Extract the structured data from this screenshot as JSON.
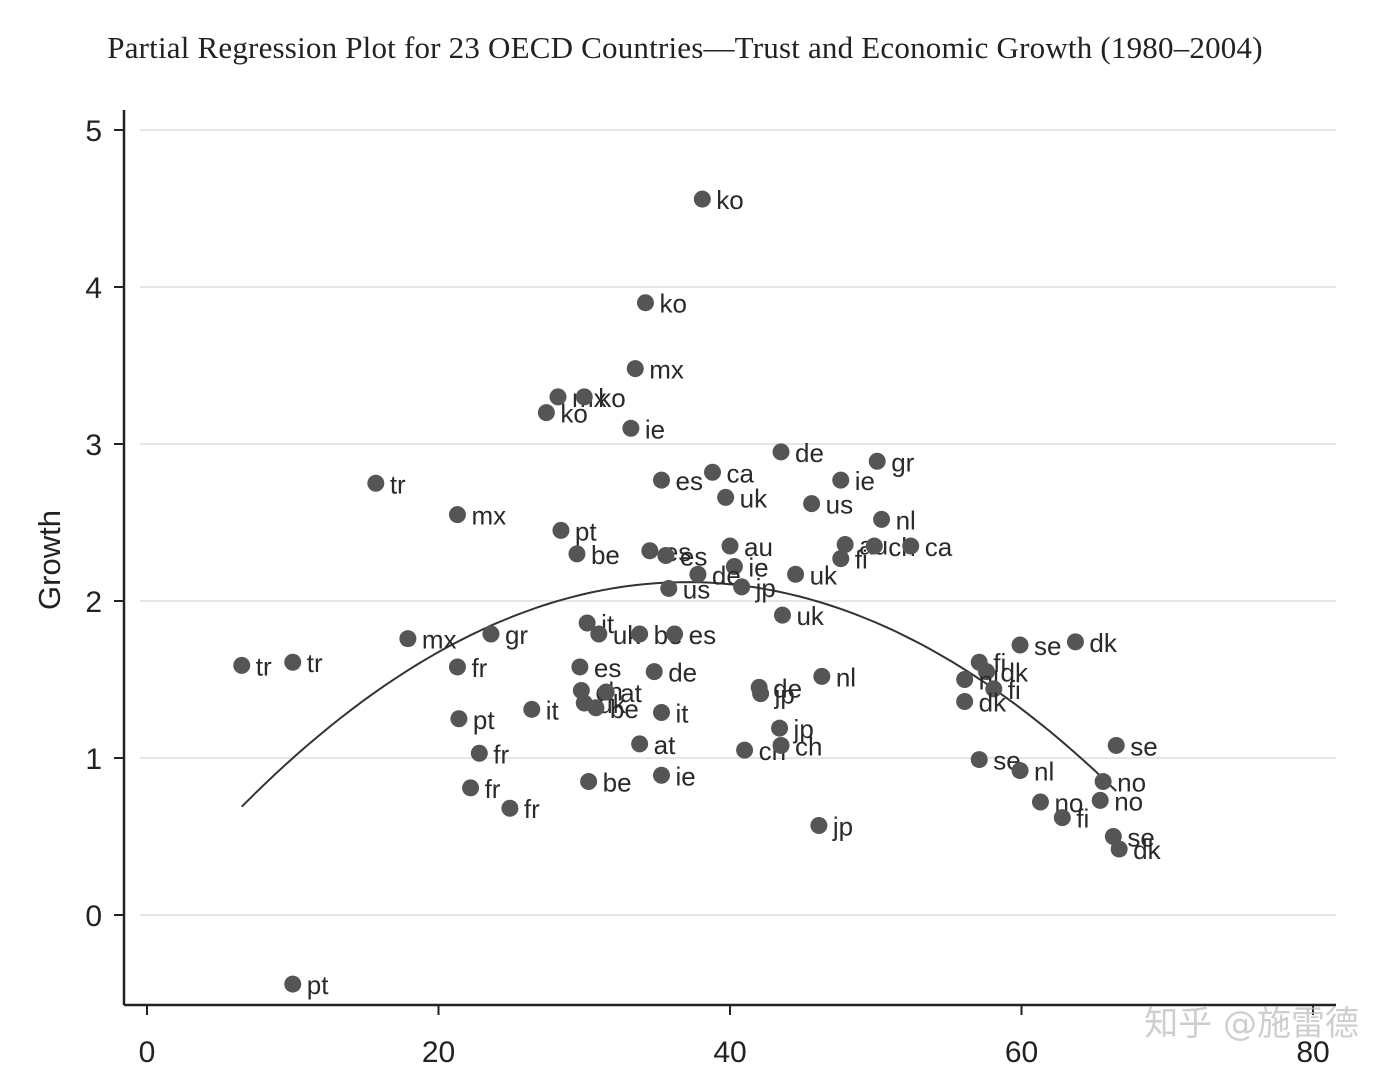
{
  "title": "Partial Regression Plot for 23 OECD Countries—Trust and Economic Growth (1980–2004)",
  "watermark": "知乎 @施雷德",
  "colors": {
    "point": "#555555",
    "curve": "#333333",
    "grid": "#e6e6e6",
    "axis": "#222222"
  },
  "chart_data": {
    "type": "scatter",
    "title": "Partial Regression Plot for 23 OECD Countries—Trust and Economic Growth (1980–2004)",
    "xlabel": "",
    "ylabel": "Growth",
    "xlim": [
      -2,
      80
    ],
    "ylim": [
      -0.58,
      5.15
    ],
    "xticks": [
      0,
      20,
      40,
      60,
      80
    ],
    "yticks": [
      0,
      1,
      2,
      3,
      4,
      5
    ],
    "grid": "horizontal",
    "points": [
      {
        "label": "ko",
        "x": 38.1,
        "y": 4.56
      },
      {
        "label": "ko",
        "x": 34.2,
        "y": 3.9
      },
      {
        "label": "mx",
        "x": 33.5,
        "y": 3.48
      },
      {
        "label": "mx",
        "x": 28.2,
        "y": 3.3
      },
      {
        "label": "ko",
        "x": 30.0,
        "y": 3.3
      },
      {
        "label": "ko",
        "x": 27.4,
        "y": 3.2
      },
      {
        "label": "ie",
        "x": 33.2,
        "y": 3.1
      },
      {
        "label": "tr",
        "x": 15.7,
        "y": 2.75
      },
      {
        "label": "mx",
        "x": 21.3,
        "y": 2.55
      },
      {
        "label": "pt",
        "x": 28.4,
        "y": 2.45
      },
      {
        "label": "be",
        "x": 29.5,
        "y": 2.3
      },
      {
        "label": "es",
        "x": 35.3,
        "y": 2.77
      },
      {
        "label": "ca",
        "x": 38.8,
        "y": 2.82
      },
      {
        "label": "uk",
        "x": 39.7,
        "y": 2.66
      },
      {
        "label": "de",
        "x": 43.5,
        "y": 2.95
      },
      {
        "label": "ie",
        "x": 47.6,
        "y": 2.77
      },
      {
        "label": "gr",
        "x": 50.1,
        "y": 2.89
      },
      {
        "label": "us",
        "x": 45.6,
        "y": 2.62
      },
      {
        "label": "nl",
        "x": 50.4,
        "y": 2.52
      },
      {
        "label": "au",
        "x": 40.0,
        "y": 2.35
      },
      {
        "label": "es",
        "x": 34.5,
        "y": 2.32
      },
      {
        "label": "es",
        "x": 35.6,
        "y": 2.29
      },
      {
        "label": "ie",
        "x": 40.3,
        "y": 2.22
      },
      {
        "label": "de",
        "x": 37.8,
        "y": 2.17
      },
      {
        "label": "us",
        "x": 35.8,
        "y": 2.08
      },
      {
        "label": "jp",
        "x": 40.8,
        "y": 2.09
      },
      {
        "label": "uk",
        "x": 44.5,
        "y": 2.17
      },
      {
        "label": "fi",
        "x": 47.6,
        "y": 2.27
      },
      {
        "label": "au",
        "x": 47.9,
        "y": 2.36
      },
      {
        "label": "ch",
        "x": 49.9,
        "y": 2.35
      },
      {
        "label": "ca",
        "x": 52.4,
        "y": 2.35
      },
      {
        "label": "uk",
        "x": 43.6,
        "y": 1.91
      },
      {
        "label": "tr",
        "x": 6.5,
        "y": 1.59
      },
      {
        "label": "tr",
        "x": 10.0,
        "y": 1.61
      },
      {
        "label": "mx",
        "x": 17.9,
        "y": 1.76
      },
      {
        "label": "gr",
        "x": 23.6,
        "y": 1.79
      },
      {
        "label": "fr",
        "x": 21.3,
        "y": 1.58
      },
      {
        "label": "it",
        "x": 30.2,
        "y": 1.86
      },
      {
        "label": "uk",
        "x": 31.0,
        "y": 1.79
      },
      {
        "label": "be",
        "x": 33.8,
        "y": 1.79
      },
      {
        "label": "es",
        "x": 36.2,
        "y": 1.79
      },
      {
        "label": "es",
        "x": 29.7,
        "y": 1.58
      },
      {
        "label": "de",
        "x": 34.8,
        "y": 1.55
      },
      {
        "label": "pt",
        "x": 21.4,
        "y": 1.25
      },
      {
        "label": "it",
        "x": 26.4,
        "y": 1.31
      },
      {
        "label": "ch",
        "x": 29.8,
        "y": 1.43
      },
      {
        "label": "at",
        "x": 31.5,
        "y": 1.42
      },
      {
        "label": "uk",
        "x": 30.0,
        "y": 1.35
      },
      {
        "label": "be",
        "x": 30.8,
        "y": 1.32
      },
      {
        "label": "it",
        "x": 35.3,
        "y": 1.29
      },
      {
        "label": "at",
        "x": 33.8,
        "y": 1.09
      },
      {
        "label": "fr",
        "x": 22.8,
        "y": 1.03
      },
      {
        "label": "fr",
        "x": 22.2,
        "y": 0.81
      },
      {
        "label": "fr",
        "x": 24.9,
        "y": 0.68
      },
      {
        "label": "be",
        "x": 30.3,
        "y": 0.85
      },
      {
        "label": "ie",
        "x": 35.3,
        "y": 0.89
      },
      {
        "label": "de",
        "x": 42.0,
        "y": 1.45
      },
      {
        "label": "jp",
        "x": 42.1,
        "y": 1.41
      },
      {
        "label": "nl",
        "x": 46.3,
        "y": 1.52
      },
      {
        "label": "jp",
        "x": 43.4,
        "y": 1.19
      },
      {
        "label": "ch",
        "x": 41.0,
        "y": 1.05
      },
      {
        "label": "ch",
        "x": 43.5,
        "y": 1.08
      },
      {
        "label": "jp",
        "x": 46.1,
        "y": 0.57
      },
      {
        "label": "se",
        "x": 59.9,
        "y": 1.72
      },
      {
        "label": "dk",
        "x": 63.7,
        "y": 1.74
      },
      {
        "label": "fi",
        "x": 57.1,
        "y": 1.61
      },
      {
        "label": "dk",
        "x": 57.6,
        "y": 1.55
      },
      {
        "label": "nl",
        "x": 56.1,
        "y": 1.5
      },
      {
        "label": "fi",
        "x": 58.1,
        "y": 1.44
      },
      {
        "label": "dk",
        "x": 56.1,
        "y": 1.36
      },
      {
        "label": "se",
        "x": 57.1,
        "y": 0.99
      },
      {
        "label": "nl",
        "x": 59.9,
        "y": 0.92
      },
      {
        "label": "se",
        "x": 66.5,
        "y": 1.08
      },
      {
        "label": "no",
        "x": 65.6,
        "y": 0.85
      },
      {
        "label": "no",
        "x": 61.3,
        "y": 0.72
      },
      {
        "label": "no",
        "x": 65.4,
        "y": 0.73
      },
      {
        "label": "fi",
        "x": 62.8,
        "y": 0.62
      },
      {
        "label": "se",
        "x": 66.3,
        "y": 0.5
      },
      {
        "label": "dk",
        "x": 66.7,
        "y": 0.42
      },
      {
        "label": "pt",
        "x": 10.0,
        "y": -0.44
      }
    ],
    "fit_curve": {
      "type": "quadratic",
      "x_range": [
        6.5,
        66.5
      ],
      "points": [
        {
          "x": 6.5,
          "y": 0.69
        },
        {
          "x": 36.6,
          "y": 2.12
        },
        {
          "x": 66.5,
          "y": 0.79
        }
      ]
    }
  }
}
